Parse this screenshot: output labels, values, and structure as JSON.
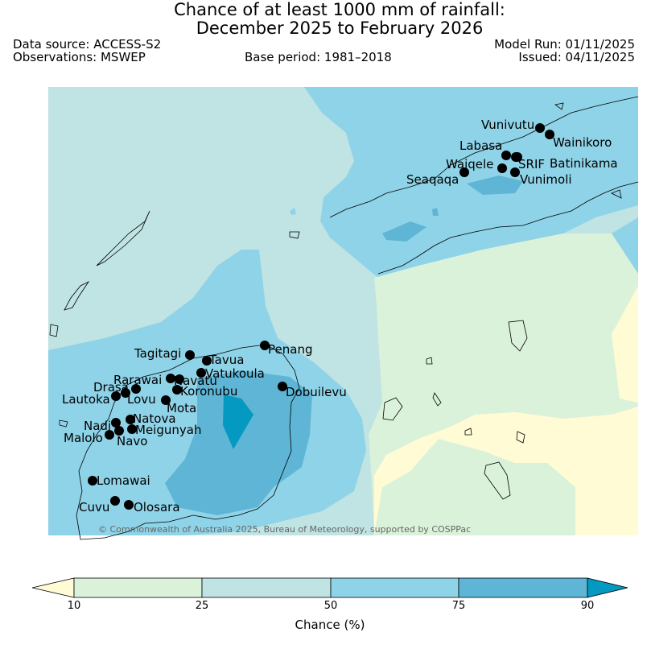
{
  "header": {
    "title_line1": "Chance of at least 1000 mm of rainfall:",
    "title_line2": "December 2025 to February 2026",
    "data_source": "Data source: ACCESS-S2",
    "observations": "Observations: MSWEP",
    "base_period": "Base period: 1981–2018",
    "model_run": "Model Run: 01/11/2025",
    "issued": "Issued: 04/11/2025"
  },
  "map": {
    "copyright": "© Commonwealth of Australia 2025, Bureau of Meteorology, supported by COSPPac",
    "stations": [
      {
        "name": "Vunivutu"
      },
      {
        "name": "Wainikoro"
      },
      {
        "name": "Labasa"
      },
      {
        "name": "Waiqele"
      },
      {
        "name": "SRIF"
      },
      {
        "name": "Batinikama"
      },
      {
        "name": "Seaqaqa"
      },
      {
        "name": "Vunimoli"
      },
      {
        "name": "Tagitagi"
      },
      {
        "name": "Tavua"
      },
      {
        "name": "Penang"
      },
      {
        "name": "Rarawai"
      },
      {
        "name": "Navatu"
      },
      {
        "name": "Vatukoula"
      },
      {
        "name": "Drasa"
      },
      {
        "name": "Koronubu"
      },
      {
        "name": "Lautoka"
      },
      {
        "name": "Lovu"
      },
      {
        "name": "Dobuilevu"
      },
      {
        "name": "Mota"
      },
      {
        "name": "Natova"
      },
      {
        "name": "Nadi"
      },
      {
        "name": "Meigunyah"
      },
      {
        "name": "Malolo"
      },
      {
        "name": "Navo"
      },
      {
        "name": "Lomawai"
      },
      {
        "name": "Cuvu"
      },
      {
        "name": "Olosara"
      }
    ]
  },
  "colorbar": {
    "label": "Chance (%)",
    "ticks": [
      "10",
      "25",
      "50",
      "75",
      "90"
    ],
    "colors": [
      "#fffbd5",
      "#dbf2da",
      "#c0e3e3",
      "#8fd3e8",
      "#5eb5d5",
      "#0499c0"
    ]
  }
}
